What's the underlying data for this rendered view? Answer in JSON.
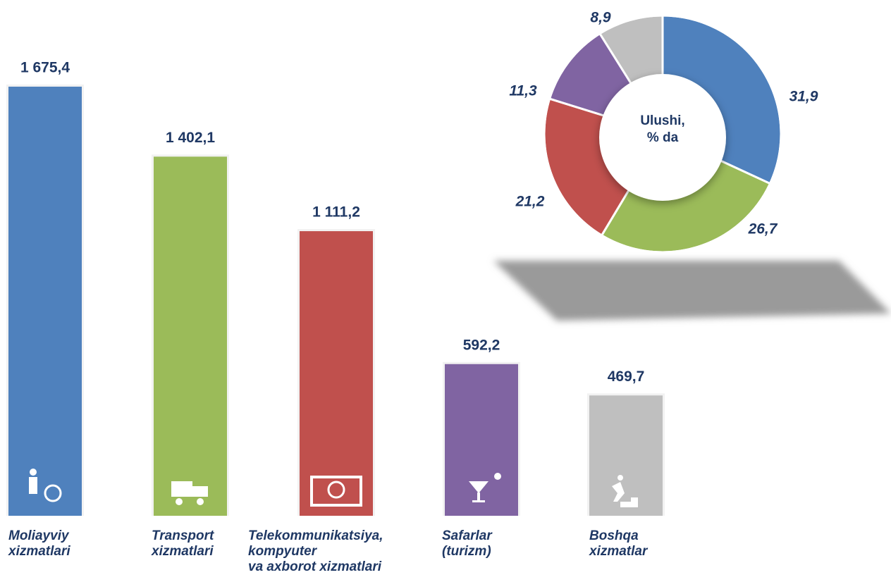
{
  "chart_data": [
    {
      "type": "bar",
      "categories": [
        "Moliayviy\nxizmatlari",
        "Transport\nxizmatlari",
        "Telekommunikatsiya,\nkompyuter\nva axborot xizmatlari",
        "Safarlar\n(turizm)",
        "Boshqa\nxizmatlar"
      ],
      "values": [
        1675.4,
        1402.1,
        1111.2,
        592.2,
        469.7
      ],
      "value_labels": [
        "1 675,4",
        "1 402,1",
        "1 111,2",
        "592,2",
        "469,7"
      ],
      "colors": [
        "#4f81bd",
        "#9bbb59",
        "#c0504d",
        "#8064a2",
        "#bfbfbf"
      ]
    },
    {
      "type": "donut",
      "title": "Ulushi,\n% da",
      "values": [
        31.9,
        26.7,
        21.2,
        11.3,
        8.9
      ],
      "value_labels": [
        "31,9",
        "26,7",
        "21,2",
        "11,3",
        "8,9"
      ],
      "colors": [
        "#4f81bd",
        "#9bbb59",
        "#c0504d",
        "#8064a2",
        "#bfbfbf"
      ]
    }
  ]
}
